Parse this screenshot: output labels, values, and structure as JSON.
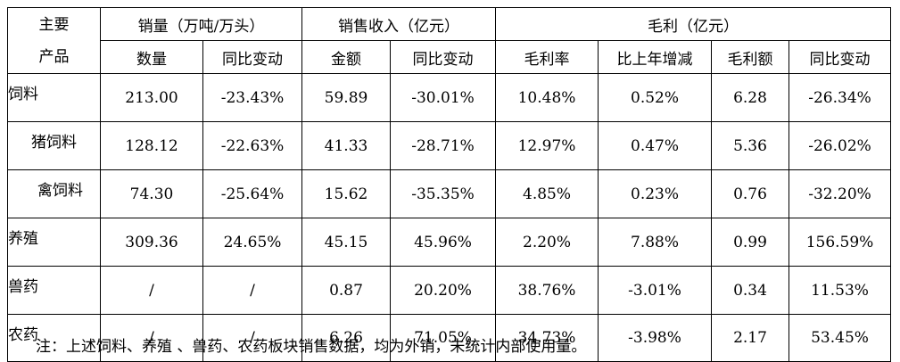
{
  "header": {
    "corner_line1": "主要",
    "corner_line2": "产品",
    "groups": [
      "销量（万吨/万头）",
      "销售收入（亿元）",
      "毛利（亿元）"
    ],
    "columns": [
      "数量",
      "同比变动",
      "金额",
      "同比变动",
      "毛利率",
      "比上年增减",
      "毛利额",
      "同比变动"
    ]
  },
  "rows": [
    {
      "label": "饲料",
      "cells": [
        "213.00",
        "-23.43%",
        "59.89",
        "-30.01%",
        "10.48%",
        "0.52%",
        "6.28",
        "-26.34%"
      ]
    },
    {
      "label": "猪饲料",
      "cells": [
        "128.12",
        "-22.63%",
        "41.33",
        "-28.71%",
        "12.97%",
        "0.47%",
        "5.36",
        "-26.02%"
      ]
    },
    {
      "label": "禽饲料",
      "cells": [
        "74.30",
        "-25.64%",
        "15.62",
        "-35.35%",
        "4.85%",
        "0.23%",
        "0.76",
        "-32.20%"
      ]
    },
    {
      "label": "养殖",
      "cells": [
        "309.36",
        "24.65%",
        "45.15",
        "45.96%",
        "2.20%",
        "7.88%",
        "0.99",
        "156.59%"
      ]
    },
    {
      "label": "兽药",
      "cells": [
        "/",
        "/",
        "0.87",
        "20.20%",
        "38.76%",
        "-3.01%",
        "0.34",
        "11.53%"
      ]
    },
    {
      "label": "农药",
      "cells": [
        "/",
        "/",
        "6.26",
        "71.05%",
        "34.73%",
        "-3.98%",
        "2.17",
        "53.45%"
      ]
    }
  ],
  "note": "注：上述饲料、养殖 、兽药、农药板块销售数据，均为外销，未统计内部使用量。"
}
